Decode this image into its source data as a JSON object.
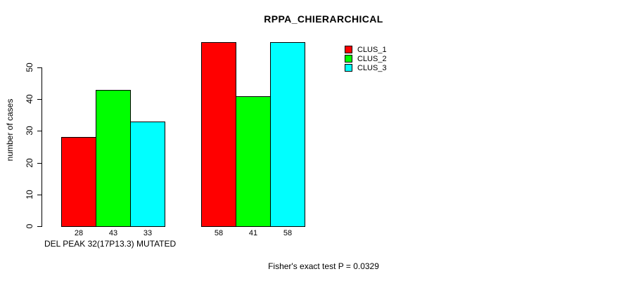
{
  "chart_data": {
    "type": "bar",
    "title": "RPPA_CHIERARCHICAL",
    "ylabel": "number of cases",
    "xlabel": "DEL PEAK 32(17P13.3) MUTATED",
    "annotation": "Fisher's exact test P = 0.0329",
    "legend_position": "top-right",
    "grid": false,
    "background": "#ffffff",
    "bar_border_color": "#000000",
    "ylim": [
      0,
      50
    ],
    "yticks": [
      0,
      10,
      20,
      30,
      40,
      50
    ],
    "group_count": 2,
    "series": [
      {
        "name": "CLUS_1",
        "color": "#ff0000",
        "values": [
          28,
          58
        ]
      },
      {
        "name": "CLUS_2",
        "color": "#00ff00",
        "values": [
          43,
          41
        ]
      },
      {
        "name": "CLUS_3",
        "color": "#00ffff",
        "values": [
          33,
          58
        ]
      }
    ],
    "bar_value_labels": [
      [
        28,
        43,
        33
      ],
      [
        58,
        41,
        58
      ]
    ]
  }
}
